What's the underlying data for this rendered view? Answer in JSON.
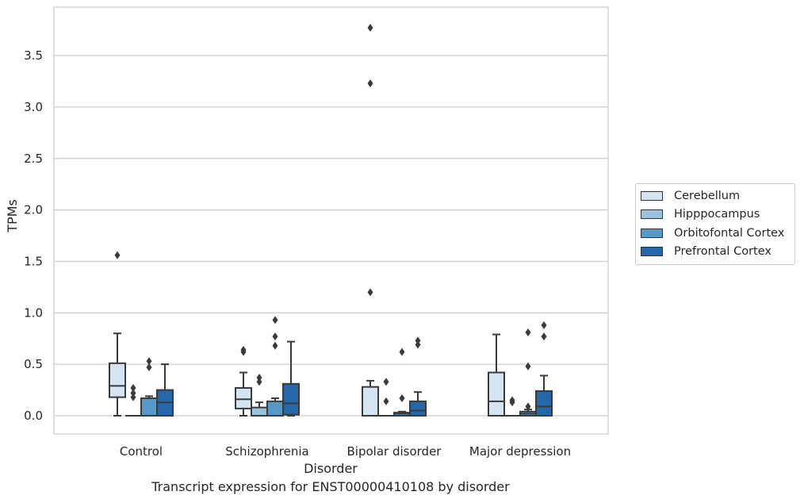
{
  "caption": "Transcript expression for ENST00000410108 by disorder",
  "chart_data": {
    "type": "box",
    "xlabel": "Disorder",
    "ylabel": "TPMs",
    "ylim": [
      -0.18,
      3.98
    ],
    "yticks": [
      0.0,
      0.5,
      1.0,
      1.5,
      2.0,
      2.5,
      3.0,
      3.5
    ],
    "ytick_labels": [
      "0.0",
      "0.5",
      "1.0",
      "1.5",
      "2.0",
      "2.5",
      "3.0",
      "3.5"
    ],
    "categories": [
      "Control",
      "Schizophrenia",
      "Bipolar disorder",
      "Major depression"
    ],
    "grid": "horizontal",
    "legend_position": "right",
    "series": [
      {
        "name": "Cerebellum",
        "color": "#d5e4f3",
        "boxes": [
          {
            "whislo": 0.0,
            "q1": 0.18,
            "med": 0.29,
            "q3": 0.51,
            "whishi": 0.8,
            "fliers": [
              1.56
            ]
          },
          {
            "whislo": 0.0,
            "q1": 0.07,
            "med": 0.16,
            "q3": 0.27,
            "whishi": 0.42,
            "fliers": [
              0.62,
              0.64
            ]
          },
          {
            "whislo": 0.0,
            "q1": 0.0,
            "med": 0.0,
            "q3": 0.28,
            "whishi": 0.34,
            "fliers": [
              1.2,
              3.23,
              3.77
            ]
          },
          {
            "whislo": 0.0,
            "q1": 0.0,
            "med": 0.14,
            "q3": 0.42,
            "whishi": 0.79,
            "fliers": []
          }
        ]
      },
      {
        "name": "Hipppocampus",
        "color": "#9ac2df",
        "boxes": [
          {
            "whislo": 0.0,
            "q1": 0.0,
            "med": 0.0,
            "q3": 0.0,
            "whishi": 0.0,
            "fliers": [
              0.18,
              0.22,
              0.27
            ]
          },
          {
            "whislo": 0.0,
            "q1": 0.0,
            "med": 0.0,
            "q3": 0.08,
            "whishi": 0.13,
            "fliers": [
              0.33,
              0.37
            ]
          },
          {
            "whislo": 0.0,
            "q1": 0.0,
            "med": 0.0,
            "q3": 0.0,
            "whishi": 0.0,
            "fliers": [
              0.14,
              0.33
            ]
          },
          {
            "whislo": 0.0,
            "q1": 0.0,
            "med": 0.0,
            "q3": 0.0,
            "whishi": 0.0,
            "fliers": [
              0.13,
              0.15
            ]
          }
        ]
      },
      {
        "name": "Orbitofontal Cortex",
        "color": "#5699c6",
        "boxes": [
          {
            "whislo": 0.0,
            "q1": 0.0,
            "med": 0.0,
            "q3": 0.17,
            "whishi": 0.19,
            "fliers": [
              0.47,
              0.53
            ]
          },
          {
            "whislo": 0.0,
            "q1": 0.0,
            "med": 0.0,
            "q3": 0.14,
            "whishi": 0.17,
            "fliers": [
              0.68,
              0.77,
              0.93
            ]
          },
          {
            "whislo": 0.0,
            "q1": 0.0,
            "med": 0.02,
            "q3": 0.03,
            "whishi": 0.04,
            "fliers": [
              0.17,
              0.62
            ]
          },
          {
            "whislo": 0.0,
            "q1": 0.0,
            "med": 0.02,
            "q3": 0.04,
            "whishi": 0.06,
            "fliers": [
              0.09,
              0.48,
              0.81
            ]
          }
        ]
      },
      {
        "name": "Prefrontal Cortex",
        "color": "#2468a9",
        "boxes": [
          {
            "whislo": 0.0,
            "q1": 0.0,
            "med": 0.13,
            "q3": 0.25,
            "whishi": 0.5,
            "fliers": []
          },
          {
            "whislo": 0.0,
            "q1": 0.01,
            "med": 0.12,
            "q3": 0.31,
            "whishi": 0.72,
            "fliers": []
          },
          {
            "whislo": 0.0,
            "q1": 0.0,
            "med": 0.05,
            "q3": 0.14,
            "whishi": 0.23,
            "fliers": [
              0.69,
              0.73
            ]
          },
          {
            "whislo": 0.0,
            "q1": 0.0,
            "med": 0.09,
            "q3": 0.24,
            "whishi": 0.39,
            "fliers": [
              0.77,
              0.88
            ]
          }
        ]
      }
    ]
  }
}
